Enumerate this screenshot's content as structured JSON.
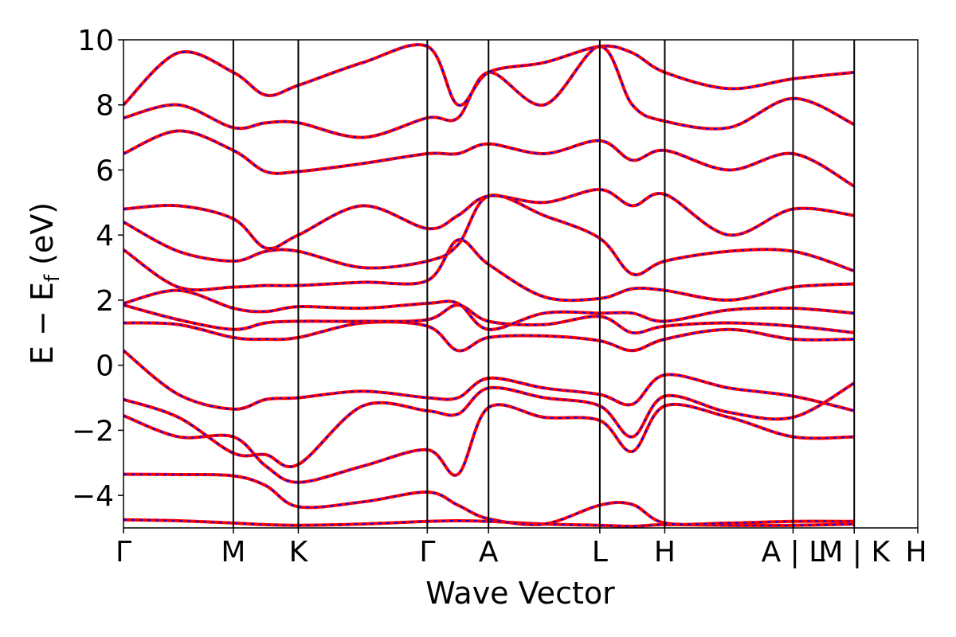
{
  "chart_data": {
    "type": "line",
    "xlabel": "Wave Vector",
    "ylabel": "E − E",
    "ylabel_sub": "f",
    "ylabel_unit": " (eV)",
    "ylim": [
      -5,
      10
    ],
    "yticks": [
      -4,
      -2,
      0,
      2,
      4,
      6,
      8,
      10
    ],
    "ytick_labels": [
      "−4",
      "−2",
      "0",
      "2",
      "4",
      "6",
      "8",
      "10"
    ],
    "xlim": [
      0,
      1
    ],
    "kpoints": [
      {
        "label": "Γ",
        "x": 0.0
      },
      {
        "label": "M",
        "x": 0.1383
      },
      {
        "label": "K",
        "x": 0.2201
      },
      {
        "label": "Γ",
        "x": 0.3825
      },
      {
        "label": "A",
        "x": 0.4596
      },
      {
        "label": "L",
        "x": 0.5997
      },
      {
        "label": "H",
        "x": 0.6815
      },
      {
        "label": "A | L",
        "x": 0.843
      },
      {
        "label": "M | K",
        "x": 0.92
      },
      {
        "label": "H",
        "x": 1.0
      }
    ],
    "series_colors": {
      "primary": "#ff0000",
      "overlay": "#0000ff"
    },
    "bands": [
      [
        -4.75,
        -4.78,
        -4.85,
        -4.9,
        -4.92,
        -4.88,
        -4.8,
        -4.78,
        -4.8,
        -4.88,
        -4.92,
        -4.95,
        -4.9,
        -4.92,
        -4.92,
        -4.88
      ],
      [
        -3.35,
        -3.36,
        -3.4,
        -3.7,
        -4.35,
        -4.2,
        -3.9,
        -4.3,
        -4.72,
        -4.88,
        -4.3,
        -4.28,
        -4.85,
        -4.85,
        -4.8,
        -4.8
      ],
      [
        -1.55,
        -2.2,
        -2.2,
        -3.1,
        -3.6,
        -3.1,
        -2.6,
        -3.35,
        -1.3,
        -1.6,
        -1.7,
        -2.65,
        -1.25,
        -1.6,
        -2.2,
        -2.2
      ],
      [
        -1.05,
        -1.6,
        -2.7,
        -2.75,
        -3.05,
        -1.25,
        -1.4,
        -1.5,
        -0.7,
        -1.0,
        -1.25,
        -2.2,
        -0.95,
        -1.45,
        -1.6,
        -0.55
      ],
      [
        0.45,
        -0.9,
        -1.35,
        -1.05,
        -1.0,
        -0.8,
        -1.0,
        -1.0,
        -0.4,
        -0.7,
        -0.9,
        -1.2,
        -0.3,
        -0.7,
        -0.95,
        -1.4
      ],
      [
        1.3,
        1.25,
        0.85,
        0.8,
        0.85,
        1.3,
        1.2,
        0.45,
        0.85,
        0.9,
        0.75,
        0.45,
        0.8,
        1.1,
        0.8,
        0.8
      ],
      [
        1.85,
        1.4,
        1.1,
        1.3,
        1.35,
        1.35,
        1.4,
        1.85,
        1.35,
        1.25,
        1.5,
        1.0,
        1.2,
        1.3,
        1.2,
        1.0
      ],
      [
        1.9,
        2.3,
        1.75,
        1.65,
        1.8,
        1.75,
        1.9,
        1.9,
        1.1,
        1.6,
        1.6,
        1.6,
        1.35,
        1.7,
        1.75,
        1.6
      ],
      [
        3.55,
        2.4,
        2.4,
        2.45,
        2.45,
        2.55,
        2.6,
        3.85,
        3.1,
        2.1,
        2.05,
        2.35,
        2.3,
        2.0,
        2.4,
        2.5
      ],
      [
        4.4,
        3.5,
        3.2,
        3.5,
        3.5,
        3.0,
        3.2,
        3.7,
        5.2,
        4.6,
        3.9,
        2.8,
        3.2,
        3.5,
        3.5,
        2.9
      ],
      [
        4.8,
        4.9,
        4.5,
        3.6,
        4.0,
        4.9,
        4.2,
        4.6,
        5.2,
        5.0,
        5.4,
        4.9,
        5.25,
        4.0,
        4.8,
        4.6
      ],
      [
        6.5,
        7.2,
        6.6,
        5.95,
        5.95,
        6.2,
        6.5,
        6.5,
        6.8,
        6.5,
        6.9,
        6.3,
        6.6,
        6.0,
        6.5,
        5.5
      ],
      [
        7.6,
        8.0,
        7.3,
        7.45,
        7.45,
        7.0,
        7.6,
        7.6,
        9.0,
        8.0,
        9.8,
        8.0,
        7.5,
        7.3,
        8.2,
        7.4
      ],
      [
        8.0,
        9.6,
        9.0,
        8.3,
        8.6,
        9.3,
        9.8,
        8.0,
        9.0,
        9.3,
        9.8,
        9.6,
        9.0,
        8.5,
        8.8,
        9.0
      ]
    ]
  }
}
